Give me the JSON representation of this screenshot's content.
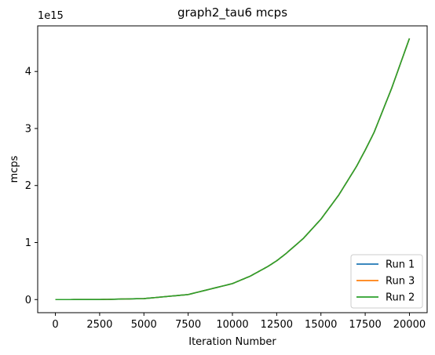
{
  "chart_data": {
    "type": "line",
    "title": "graph2_tau6 mcps",
    "xlabel": "Iteration Number",
    "ylabel": "mcps",
    "y_offset_label": "1e15",
    "xlim": [
      -1000,
      21000
    ],
    "ylim": [
      -0.23,
      4.8
    ],
    "y_scale_factor": 1000000000000000.0,
    "x_ticks": [
      0,
      2500,
      5000,
      7500,
      10000,
      12500,
      15000,
      17500,
      20000
    ],
    "x_tick_labels": [
      "0",
      "2500",
      "5000",
      "7500",
      "10000",
      "12500",
      "15000",
      "17500",
      "20000"
    ],
    "y_ticks": [
      0,
      1,
      2,
      3,
      4
    ],
    "y_tick_labels": [
      "0",
      "1",
      "2",
      "3",
      "4"
    ],
    "grid": false,
    "legend_position": "bottom-right",
    "x": [
      0,
      2500,
      5000,
      7500,
      10000,
      11000,
      12000,
      12500,
      13000,
      14000,
      15000,
      16000,
      17000,
      17500,
      18000,
      19000,
      20000
    ],
    "series": [
      {
        "name": "Run 1",
        "color": "#1f77b4",
        "values": [
          0,
          0.001,
          0.017,
          0.088,
          0.28,
          0.41,
          0.58,
          0.68,
          0.8,
          1.07,
          1.41,
          1.83,
          2.33,
          2.62,
          2.93,
          3.71,
          4.58
        ]
      },
      {
        "name": "Run 3",
        "color": "#ff7f0e",
        "values": [
          0,
          0.001,
          0.017,
          0.088,
          0.28,
          0.41,
          0.58,
          0.68,
          0.8,
          1.07,
          1.41,
          1.83,
          2.33,
          2.62,
          2.93,
          3.71,
          4.58
        ]
      },
      {
        "name": "Run 2",
        "color": "#2ca02c",
        "values": [
          0,
          0.001,
          0.017,
          0.088,
          0.28,
          0.41,
          0.58,
          0.68,
          0.8,
          1.07,
          1.41,
          1.83,
          2.33,
          2.62,
          2.93,
          3.71,
          4.58
        ]
      }
    ]
  }
}
